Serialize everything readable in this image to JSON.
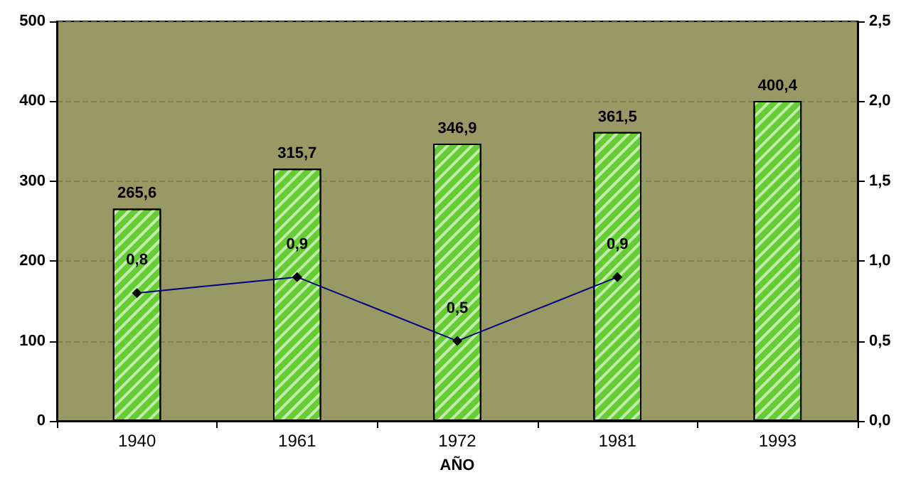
{
  "chart_data": {
    "type": "bar",
    "xlabel": "AÑO",
    "categories": [
      "1940",
      "1961",
      "1972",
      "1981",
      "1993"
    ],
    "series": [
      {
        "color": "#66cc33",
        "values": [
          265.6,
          315.7,
          346.9,
          361.5,
          400.4
        ],
        "value_labels": [
          "265,6",
          "315,7",
          "346,9",
          "361,5",
          "400,4"
        ]
      },
      {
        "type": "line",
        "axis": "y2",
        "color": "#000080",
        "values": [
          0.8,
          0.9,
          0.5,
          0.9,
          null
        ],
        "value_labels": [
          "0,8",
          "0,9",
          "0,5",
          "0,9",
          null
        ],
        "marker": "diamond"
      }
    ],
    "ylim": [
      0,
      500
    ],
    "yticks": [
      0,
      100,
      200,
      300,
      400,
      500
    ],
    "y2lim": [
      0,
      2.5
    ],
    "y2ticks": [
      {
        "value": 0,
        "label": "0,0"
      },
      {
        "value": 0.5,
        "label": "0,5"
      },
      {
        "value": 1,
        "label": "1,0"
      },
      {
        "value": 1.5,
        "label": "1,5"
      },
      {
        "value": 2,
        "label": "2,0"
      },
      {
        "value": 2.5,
        "label": "2,5"
      }
    ],
    "grid": "y"
  }
}
